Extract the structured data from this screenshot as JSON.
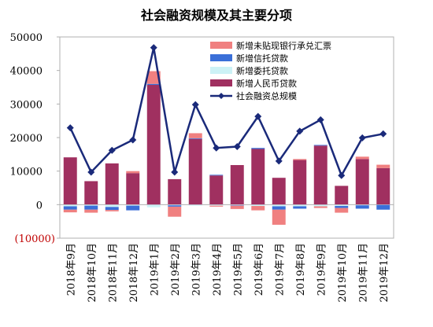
{
  "chart_data": {
    "type": "bar",
    "title": "社会融资规模及其主要分项",
    "categories": [
      "2018年9月",
      "2018年10月",
      "2018年11月",
      "2018年12月",
      "2019年1月",
      "2019年2月",
      "2019年3月",
      "2019年4月",
      "2019年5月",
      "2019年6月",
      "2019年7月",
      "2019年8月",
      "2019年9月",
      "2019年10月",
      "2019年11月",
      "2019年12月"
    ],
    "ylim": [
      -10000,
      50000
    ],
    "yticks": [
      {
        "value": 50000,
        "label": "50000"
      },
      {
        "value": 40000,
        "label": "40000"
      },
      {
        "value": 30000,
        "label": "30000"
      },
      {
        "value": 20000,
        "label": "20000"
      },
      {
        "value": 10000,
        "label": "10000"
      },
      {
        "value": 0,
        "label": "0"
      },
      {
        "value": -10000,
        "label": "(10000)"
      }
    ],
    "grid": false,
    "legend_position": "top-right",
    "series": [
      {
        "name": "新增未贴现银行承兑汇票",
        "kind": "bar",
        "color": "#f08080",
        "values": [
          -800,
          -900,
          -400,
          600,
          3800,
          -3000,
          1500,
          -300,
          -1000,
          -1300,
          -4500,
          300,
          -500,
          -1400,
          700,
          1000
        ]
      },
      {
        "name": "新增信托贷款",
        "kind": "bar",
        "color": "#3a6fd8",
        "values": [
          -1000,
          -1200,
          -900,
          -1400,
          300,
          -400,
          200,
          200,
          -100,
          300,
          -1000,
          -700,
          200,
          -600,
          -1000,
          -1400
        ]
      },
      {
        "name": "新增委托贷款",
        "kind": "bar",
        "color": "#ccf2f6",
        "values": [
          -500,
          -300,
          -700,
          -300,
          -800,
          -200,
          -300,
          -300,
          -200,
          -400,
          -500,
          -500,
          -500,
          -400,
          -200,
          -100
        ]
      },
      {
        "name": "新增人民币贷款",
        "kind": "bar",
        "color": "#a03060",
        "values": [
          14100,
          7000,
          12300,
          9400,
          35700,
          7600,
          19600,
          8700,
          11800,
          16600,
          8000,
          13300,
          17600,
          5600,
          13600,
          10900
        ]
      },
      {
        "name": "社会融资总规模",
        "kind": "line",
        "color": "#1a2a7a",
        "values": [
          22900,
          9700,
          16200,
          19300,
          46800,
          9700,
          29800,
          16900,
          17300,
          26300,
          13000,
          21900,
          25300,
          8700,
          19900,
          21100
        ]
      }
    ]
  }
}
